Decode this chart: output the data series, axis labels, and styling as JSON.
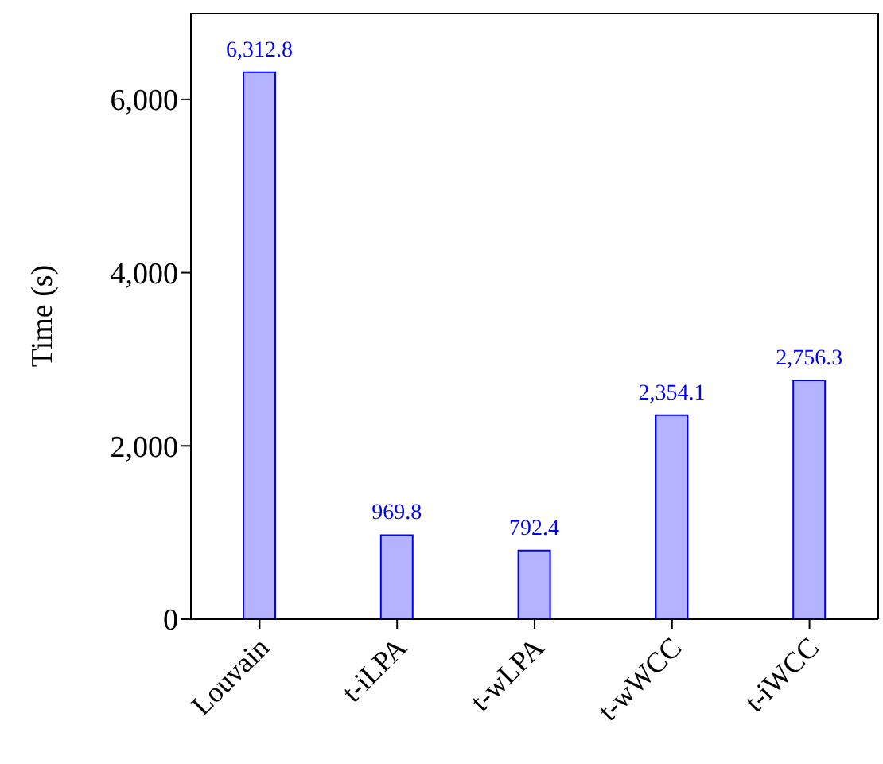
{
  "chart_data": {
    "type": "bar",
    "ylabel": "Time (s)",
    "categories": [
      "Louvain",
      "t-iLPA",
      "t-wLPA",
      "t-wWCC",
      "t-iWCC"
    ],
    "values": [
      6312.8,
      969.8,
      792.4,
      2354.1,
      2756.3
    ],
    "value_labels": [
      "6,312.8",
      "969.8",
      "792.4",
      "2,354.1",
      "2,756.3"
    ],
    "color": "#b3b3ff",
    "ylim": [
      0,
      7000
    ],
    "yticks": [
      0,
      {
        "value": 2000,
        "label": "2,000"
      },
      {
        "value": 4000,
        "label": "4,000"
      },
      {
        "value": 6000,
        "label": "6,000"
      }
    ],
    "grid": false,
    "legend": false
  }
}
